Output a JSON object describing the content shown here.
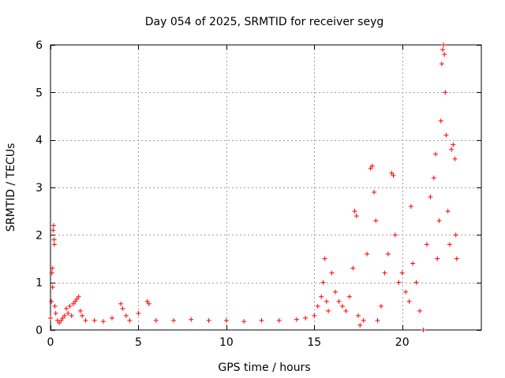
{
  "chart_data": {
    "type": "scatter",
    "title": "Day 054 of 2025, SRMTID for receiver seyg",
    "xlabel": "GPS time / hours",
    "ylabel": "SRMTID / TECUs",
    "xlim": [
      0,
      24.5
    ],
    "ylim": [
      0,
      6
    ],
    "xticks": [
      0,
      5,
      10,
      15,
      20
    ],
    "yticks": [
      0,
      1,
      2,
      3,
      4,
      5,
      6
    ],
    "grid": true,
    "marker": "plus",
    "color": "#ff0000",
    "series": [
      {
        "name": "SRMTID",
        "points": [
          [
            0.0,
            0.25
          ],
          [
            0.05,
            0.6
          ],
          [
            0.08,
            1.2
          ],
          [
            0.1,
            1.3
          ],
          [
            0.12,
            0.9
          ],
          [
            0.15,
            2.1
          ],
          [
            0.18,
            2.2
          ],
          [
            0.2,
            1.9
          ],
          [
            0.22,
            1.8
          ],
          [
            0.25,
            0.5
          ],
          [
            0.3,
            0.35
          ],
          [
            0.4,
            0.2
          ],
          [
            0.5,
            0.15
          ],
          [
            0.6,
            0.2
          ],
          [
            0.7,
            0.25
          ],
          [
            0.8,
            0.3
          ],
          [
            0.9,
            0.45
          ],
          [
            1.0,
            0.35
          ],
          [
            1.1,
            0.5
          ],
          [
            1.2,
            0.3
          ],
          [
            1.3,
            0.55
          ],
          [
            1.4,
            0.6
          ],
          [
            1.5,
            0.65
          ],
          [
            1.6,
            0.7
          ],
          [
            1.7,
            0.4
          ],
          [
            1.8,
            0.3
          ],
          [
            2.0,
            0.2
          ],
          [
            2.5,
            0.2
          ],
          [
            3.0,
            0.18
          ],
          [
            3.5,
            0.25
          ],
          [
            4.0,
            0.55
          ],
          [
            4.1,
            0.45
          ],
          [
            4.3,
            0.3
          ],
          [
            4.5,
            0.2
          ],
          [
            5.0,
            0.35
          ],
          [
            5.5,
            0.6
          ],
          [
            5.6,
            0.55
          ],
          [
            6.0,
            0.2
          ],
          [
            7.0,
            0.2
          ],
          [
            8.0,
            0.22
          ],
          [
            9.0,
            0.2
          ],
          [
            10.0,
            0.2
          ],
          [
            11.0,
            0.18
          ],
          [
            12.0,
            0.2
          ],
          [
            13.0,
            0.2
          ],
          [
            14.0,
            0.22
          ],
          [
            14.5,
            0.25
          ],
          [
            15.0,
            0.3
          ],
          [
            15.2,
            0.5
          ],
          [
            15.4,
            0.7
          ],
          [
            15.5,
            1.0
          ],
          [
            15.6,
            1.5
          ],
          [
            15.7,
            0.6
          ],
          [
            15.8,
            0.4
          ],
          [
            16.0,
            1.2
          ],
          [
            16.2,
            0.8
          ],
          [
            16.4,
            0.6
          ],
          [
            16.6,
            0.5
          ],
          [
            16.8,
            0.4
          ],
          [
            17.0,
            0.7
          ],
          [
            17.2,
            1.3
          ],
          [
            17.3,
            2.5
          ],
          [
            17.4,
            2.4
          ],
          [
            17.5,
            0.3
          ],
          [
            17.6,
            0.1
          ],
          [
            17.8,
            0.2
          ],
          [
            18.0,
            1.6
          ],
          [
            18.2,
            3.4
          ],
          [
            18.3,
            3.45
          ],
          [
            18.4,
            2.9
          ],
          [
            18.5,
            2.3
          ],
          [
            18.6,
            0.2
          ],
          [
            18.8,
            0.5
          ],
          [
            19.0,
            1.2
          ],
          [
            19.2,
            1.6
          ],
          [
            19.4,
            3.3
          ],
          [
            19.5,
            3.25
          ],
          [
            19.6,
            2.0
          ],
          [
            19.8,
            1.0
          ],
          [
            20.0,
            1.2
          ],
          [
            20.2,
            0.8
          ],
          [
            20.4,
            0.6
          ],
          [
            20.5,
            2.6
          ],
          [
            20.6,
            1.4
          ],
          [
            20.8,
            1.0
          ],
          [
            21.0,
            0.4
          ],
          [
            21.2,
            0.0
          ],
          [
            21.4,
            1.8
          ],
          [
            21.6,
            2.8
          ],
          [
            21.8,
            3.2
          ],
          [
            21.9,
            3.7
          ],
          [
            22.0,
            1.5
          ],
          [
            22.1,
            2.3
          ],
          [
            22.2,
            4.4
          ],
          [
            22.25,
            5.6
          ],
          [
            22.3,
            5.9
          ],
          [
            22.35,
            6.0
          ],
          [
            22.4,
            5.8
          ],
          [
            22.45,
            5.0
          ],
          [
            22.5,
            4.1
          ],
          [
            22.6,
            2.5
          ],
          [
            22.7,
            1.8
          ],
          [
            22.8,
            3.8
          ],
          [
            22.9,
            3.9
          ],
          [
            23.0,
            3.6
          ],
          [
            23.05,
            2.0
          ],
          [
            23.1,
            1.5
          ]
        ]
      }
    ]
  }
}
